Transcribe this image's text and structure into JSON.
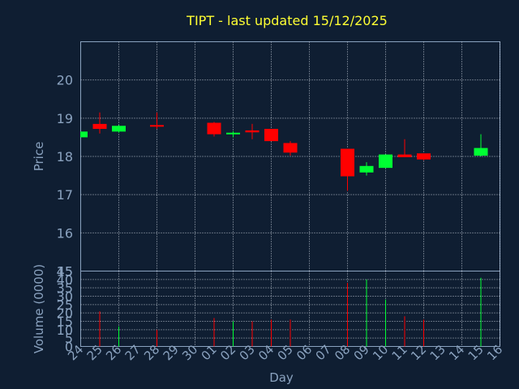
{
  "colors": {
    "background": "#0f1e32",
    "up": "#00ff33",
    "down": "#ff0000",
    "title": "#ffff33",
    "axis": "#8aa2bf"
  },
  "chart_data": {
    "type": "candlestick",
    "title": "TIPT - last updated 15/12/2025",
    "xlabel": "Day",
    "price_ylabel": "Price",
    "volume_ylabel": "Volume (0000)",
    "price_ylim": [
      15.0,
      21.0
    ],
    "price_yticks": [
      15,
      16,
      17,
      18,
      19,
      20
    ],
    "volume_ylim": [
      0,
      45
    ],
    "volume_yticks": [
      0,
      5,
      10,
      15,
      20,
      25,
      30,
      35,
      40,
      45
    ],
    "grid": true,
    "categories": [
      "24",
      "25",
      "26",
      "27",
      "28",
      "29",
      "30",
      "01",
      "02",
      "03",
      "04",
      "05",
      "06",
      "07",
      "08",
      "09",
      "10",
      "11",
      "12",
      "13",
      "14",
      "15",
      "16"
    ],
    "candles": [
      {
        "day": "24",
        "open": 18.5,
        "close": 18.65,
        "high": 18.65,
        "low": 18.5,
        "volume": 0
      },
      {
        "day": "25",
        "open": 18.85,
        "close": 18.72,
        "high": 19.15,
        "low": 18.6,
        "volume": 21
      },
      {
        "day": "26",
        "open": 18.65,
        "close": 18.8,
        "high": 18.82,
        "low": 18.62,
        "volume": 12
      },
      {
        "day": "28",
        "open": 18.82,
        "close": 18.78,
        "high": 19.15,
        "low": 18.72,
        "volume": 10
      },
      {
        "day": "01",
        "open": 18.88,
        "close": 18.58,
        "high": 18.9,
        "low": 18.52,
        "volume": 17
      },
      {
        "day": "02",
        "open": 18.58,
        "close": 18.62,
        "high": 18.66,
        "low": 18.5,
        "volume": 15
      },
      {
        "day": "03",
        "open": 18.68,
        "close": 18.63,
        "high": 18.85,
        "low": 18.45,
        "volume": 15
      },
      {
        "day": "04",
        "open": 18.72,
        "close": 18.4,
        "high": 18.72,
        "low": 18.4,
        "volume": 16
      },
      {
        "day": "05",
        "open": 18.35,
        "close": 18.1,
        "high": 18.4,
        "low": 18.02,
        "volume": 16
      },
      {
        "day": "08",
        "open": 18.2,
        "close": 17.48,
        "high": 18.2,
        "low": 17.1,
        "volume": 38
      },
      {
        "day": "09",
        "open": 17.58,
        "close": 17.75,
        "high": 17.85,
        "low": 17.5,
        "volume": 40
      },
      {
        "day": "10",
        "open": 17.7,
        "close": 18.05,
        "high": 18.05,
        "low": 17.7,
        "volume": 28
      },
      {
        "day": "11",
        "open": 18.05,
        "close": 17.98,
        "high": 18.45,
        "low": 17.98,
        "volume": 18
      },
      {
        "day": "12",
        "open": 18.08,
        "close": 17.92,
        "high": 18.08,
        "low": 17.9,
        "volume": 16
      },
      {
        "day": "15",
        "open": 18.02,
        "close": 18.22,
        "high": 18.58,
        "low": 18.0,
        "volume": 41
      }
    ]
  }
}
